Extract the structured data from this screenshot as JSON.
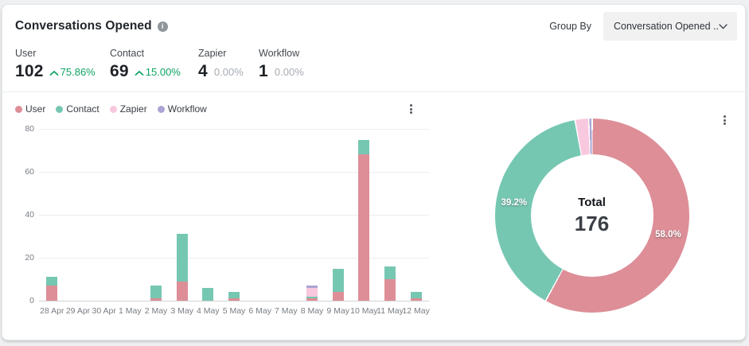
{
  "header": {
    "title": "Conversations Opened",
    "group_by_label": "Group By",
    "group_by_value": "Conversation Opened ..."
  },
  "stats": [
    {
      "label": "User",
      "value": "102",
      "change": "75.86%",
      "trend": "up"
    },
    {
      "label": "Contact",
      "value": "69",
      "change": "15.00%",
      "trend": "up"
    },
    {
      "label": "Zapier",
      "value": "4",
      "change": "0.00%",
      "trend": "flat"
    },
    {
      "label": "Workflow",
      "value": "1",
      "change": "0.00%",
      "trend": "flat"
    }
  ],
  "colors": {
    "user": "#dd8e97",
    "contact": "#76c7b2",
    "zapier": "#f8c8de",
    "workflow": "#aaa5d5",
    "positive": "#0fa264",
    "muted": "#a6abb1"
  },
  "chart_data": [
    {
      "type": "bar",
      "stacked": true,
      "categories": [
        "28 Apr",
        "29 Apr",
        "30 Apr",
        "1 May",
        "2 May",
        "3 May",
        "4 May",
        "5 May",
        "6 May",
        "7 May",
        "8 May",
        "9 May",
        "10 May",
        "11 May",
        "12 May"
      ],
      "series": [
        {
          "name": "User",
          "color": "#dd8e97",
          "values": [
            7,
            0,
            0,
            0,
            1,
            9,
            0,
            1,
            0,
            0,
            1,
            4,
            68,
            10,
            1
          ]
        },
        {
          "name": "Contact",
          "color": "#76c7b2",
          "values": [
            4,
            0,
            0,
            0,
            6,
            22,
            6,
            3,
            0,
            0,
            1,
            11,
            7,
            6,
            3
          ]
        },
        {
          "name": "Zapier",
          "color": "#f8c8de",
          "values": [
            0,
            0,
            0,
            0,
            0,
            0,
            0,
            0,
            0,
            0,
            4,
            0,
            0,
            0,
            0
          ]
        },
        {
          "name": "Workflow",
          "color": "#aaa5d5",
          "values": [
            0,
            0,
            0,
            0,
            0,
            0,
            0,
            0,
            0,
            0,
            1,
            0,
            0,
            0,
            0
          ]
        }
      ],
      "ylim": [
        0,
        80
      ],
      "yticks": [
        0,
        20,
        40,
        60,
        80
      ],
      "grid": true,
      "legend_position": "top-left"
    },
    {
      "type": "donut",
      "title": "Total",
      "total": "176",
      "slices": [
        {
          "name": "User",
          "value": 102,
          "label": "58.0%",
          "color": "#dd8e97"
        },
        {
          "name": "Contact",
          "value": 69,
          "label": "39.2%",
          "color": "#76c7b2"
        },
        {
          "name": "Zapier",
          "value": 4,
          "color": "#f8c8de"
        },
        {
          "name": "Workflow",
          "value": 1,
          "color": "#aaa5d5"
        }
      ]
    }
  ]
}
